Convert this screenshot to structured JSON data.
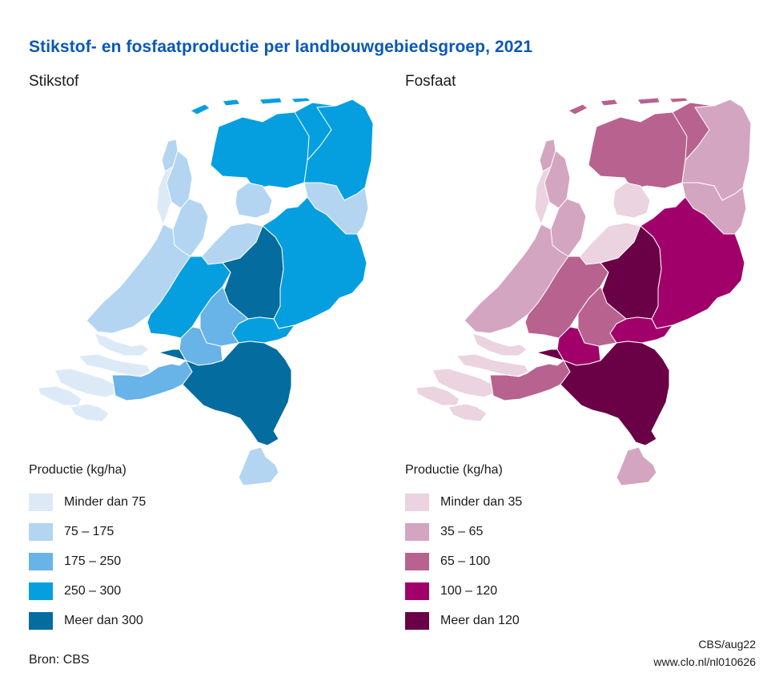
{
  "title": "Stikstof- en fosfaatproductie per landbouwgebiedsgroep, 2021",
  "maps": [
    {
      "heading": "Stikstof",
      "legend_title": "Productie (kg/ha)",
      "classes": [
        {
          "label": "Minder dan 75",
          "color": "#dceaf8"
        },
        {
          "label": "75 – 175",
          "color": "#b3d5f2"
        },
        {
          "label": "175 – 250",
          "color": "#68b3e8"
        },
        {
          "label": "250 – 300",
          "color": "#059fe0"
        },
        {
          "label": "Meer dan 300",
          "color": "#046c9f"
        }
      ]
    },
    {
      "heading": "Fosfaat",
      "legend_title": "Productie (kg/ha)",
      "classes": [
        {
          "label": "Minder dan 35",
          "color": "#ebd3e0"
        },
        {
          "label": "35 – 65",
          "color": "#d4a5c0"
        },
        {
          "label": "65 – 100",
          "color": "#b8628f"
        },
        {
          "label": "100 – 120",
          "color": "#a1006b"
        },
        {
          "label": "Meer dan 120",
          "color": "#6a0045"
        }
      ]
    }
  ],
  "regions": [
    {
      "id": "wadden",
      "class": [
        3,
        2
      ]
    },
    {
      "id": "texel",
      "class": [
        1,
        1
      ]
    },
    {
      "id": "friesland-west",
      "class": [
        3,
        2
      ]
    },
    {
      "id": "friesland-east",
      "class": [
        3,
        2
      ]
    },
    {
      "id": "groningen",
      "class": [
        3,
        1
      ]
    },
    {
      "id": "drenthe",
      "class": [
        1,
        1
      ]
    },
    {
      "id": "noord-holland-noord",
      "class": [
        1,
        1
      ]
    },
    {
      "id": "noord-holland-west",
      "class": [
        0,
        0
      ]
    },
    {
      "id": "noord-holland-zuid",
      "class": [
        1,
        1
      ]
    },
    {
      "id": "flevoland-noord",
      "class": [
        1,
        0
      ]
    },
    {
      "id": "flevoland-zuid",
      "class": [
        1,
        0
      ]
    },
    {
      "id": "overijssel",
      "class": [
        3,
        3
      ]
    },
    {
      "id": "zuid-holland",
      "class": [
        1,
        1
      ]
    },
    {
      "id": "utrecht-west",
      "class": [
        3,
        2
      ]
    },
    {
      "id": "veluwe",
      "class": [
        4,
        4
      ]
    },
    {
      "id": "achterhoek",
      "class": [
        3,
        3
      ]
    },
    {
      "id": "rivierengebied",
      "class": [
        2,
        2
      ]
    },
    {
      "id": "betuwe",
      "class": [
        2,
        3
      ]
    },
    {
      "id": "zeeland",
      "class": [
        0,
        0
      ]
    },
    {
      "id": "west-brabant",
      "class": [
        2,
        2
      ]
    },
    {
      "id": "brabant-limburg",
      "class": [
        4,
        4
      ]
    },
    {
      "id": "zuid-limburg",
      "class": [
        1,
        1
      ]
    }
  ],
  "source": "Bron: CBS",
  "credit_line1": "CBS/aug22",
  "credit_line2": "www.clo.nl/nl010626"
}
